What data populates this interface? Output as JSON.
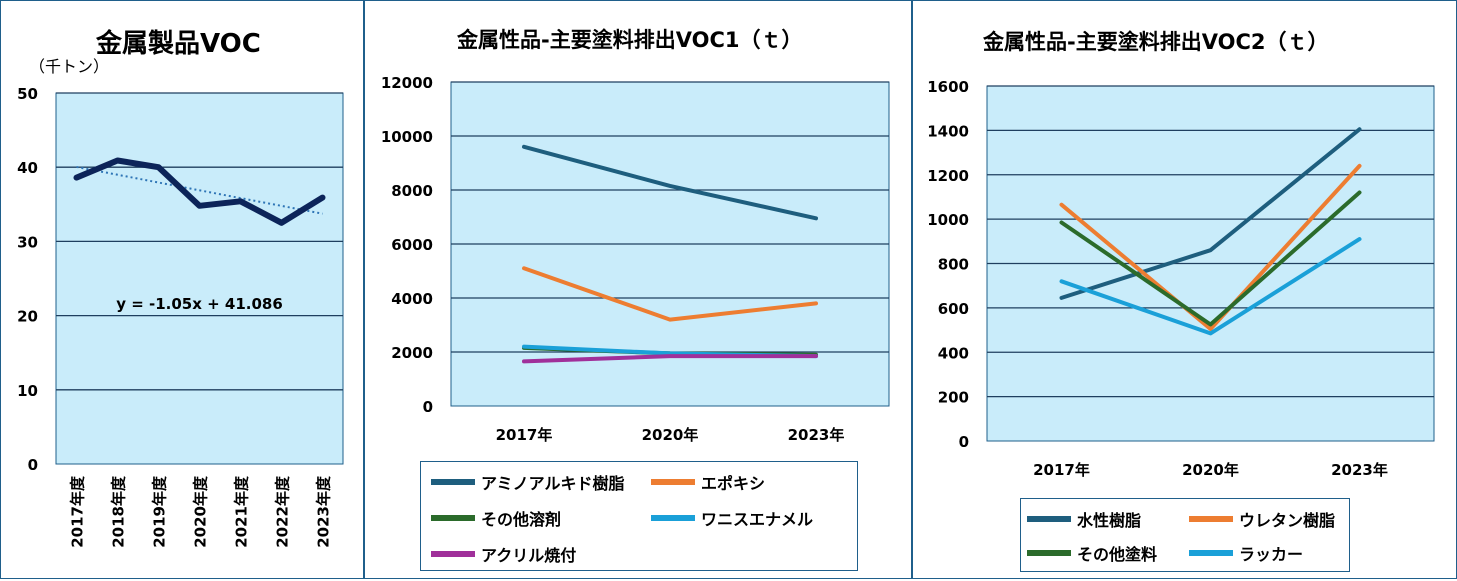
{
  "chart_data": [
    {
      "type": "line",
      "title": "金属製品VOC",
      "ylabel": "（千トン）",
      "categories": [
        "2017年度",
        "2018年度",
        "2019年度",
        "2020年度",
        "2021年度",
        "2022年度",
        "2023年度"
      ],
      "series": [
        {
          "values": [
            38.6,
            40.9,
            40.0,
            34.8,
            35.4,
            32.5,
            35.9
          ],
          "color": "#0c2459"
        }
      ],
      "trendline": {
        "equation": "y = -1.05x + 41.086",
        "slope": -1.05,
        "intercept": 41.086,
        "color": "#2e75b6"
      },
      "ylim": [
        0,
        50
      ],
      "yticks": [
        0,
        10,
        20,
        30,
        40,
        50
      ],
      "grid": true,
      "plot_background": "#c9ecfa"
    },
    {
      "type": "line",
      "title": "金属性品-主要塗料排出VOC1（ｔ）",
      "categories": [
        "2017年",
        "2020年",
        "2023年"
      ],
      "series": [
        {
          "name": "アミノアルキド樹脂",
          "values": [
            9600,
            8150,
            6950
          ],
          "color": "#1e5e7e"
        },
        {
          "name": "エポキシ",
          "values": [
            5100,
            3200,
            3800
          ],
          "color": "#ed7d31"
        },
        {
          "name": "その他溶剤",
          "values": [
            2150,
            1950,
            1900
          ],
          "color": "#2b6b2b"
        },
        {
          "name": "ワニスエナメル",
          "values": [
            2200,
            1950,
            1850
          ],
          "color": "#1aa0d8"
        },
        {
          "name": "アクリル焼付",
          "values": [
            1650,
            1850,
            1850
          ],
          "color": "#a0309a"
        }
      ],
      "ylim": [
        0,
        12000
      ],
      "yticks": [
        0,
        2000,
        4000,
        6000,
        8000,
        10000,
        12000
      ],
      "grid": true,
      "legend": "bottom",
      "plot_background": "#c9ecfa"
    },
    {
      "type": "line",
      "title": "金属性品-主要塗料排出VOC2（ｔ）",
      "categories": [
        "2017年",
        "2020年",
        "2023年"
      ],
      "series": [
        {
          "name": "水性樹脂",
          "values": [
            645,
            860,
            1405
          ],
          "color": "#1e5e7e"
        },
        {
          "name": "ウレタン樹脂",
          "values": [
            1065,
            505,
            1240
          ],
          "color": "#ed7d31"
        },
        {
          "name": "その他塗料",
          "values": [
            985,
            525,
            1120
          ],
          "color": "#2b6b2b"
        },
        {
          "name": "ラッカー",
          "values": [
            720,
            485,
            910
          ],
          "color": "#1aa0d8"
        }
      ],
      "ylim": [
        0,
        1600
      ],
      "yticks": [
        0,
        200,
        400,
        600,
        800,
        1000,
        1200,
        1400,
        1600
      ],
      "grid": true,
      "legend": "bottom",
      "plot_background": "#c9ecfa"
    }
  ]
}
